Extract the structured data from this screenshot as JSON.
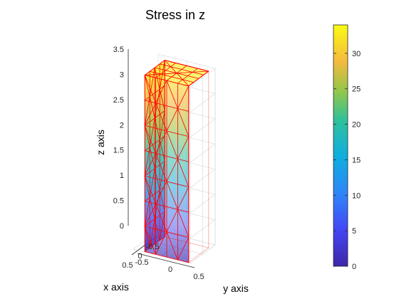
{
  "chart_data": [
    {
      "type": "3d-mesh",
      "title": "Stress in z",
      "xlabel": "x axis",
      "ylabel": "y axis",
      "zlabel": "z axis",
      "x_ticks": [
        "-0.5",
        "0",
        "0.5"
      ],
      "y_ticks": [
        "-0.5",
        "0",
        "0.5"
      ],
      "z_ticks": [
        "0",
        "0.5",
        "1",
        "1.5",
        "2",
        "2.5",
        "3",
        "3.5"
      ],
      "xlim": [
        -0.5,
        0.5
      ],
      "ylim": [
        -0.5,
        0.5
      ],
      "zlim": [
        0,
        3.5
      ],
      "edge_color": "#ff0000",
      "face_colormap": "parula",
      "stress_range": [
        0,
        34
      ],
      "grid": true
    },
    {
      "type": "colorbar",
      "range": [
        0,
        34
      ],
      "ticks": [
        "0",
        "5",
        "10",
        "15",
        "20",
        "25",
        "30"
      ],
      "colormap": "parula",
      "placement": "right"
    }
  ]
}
